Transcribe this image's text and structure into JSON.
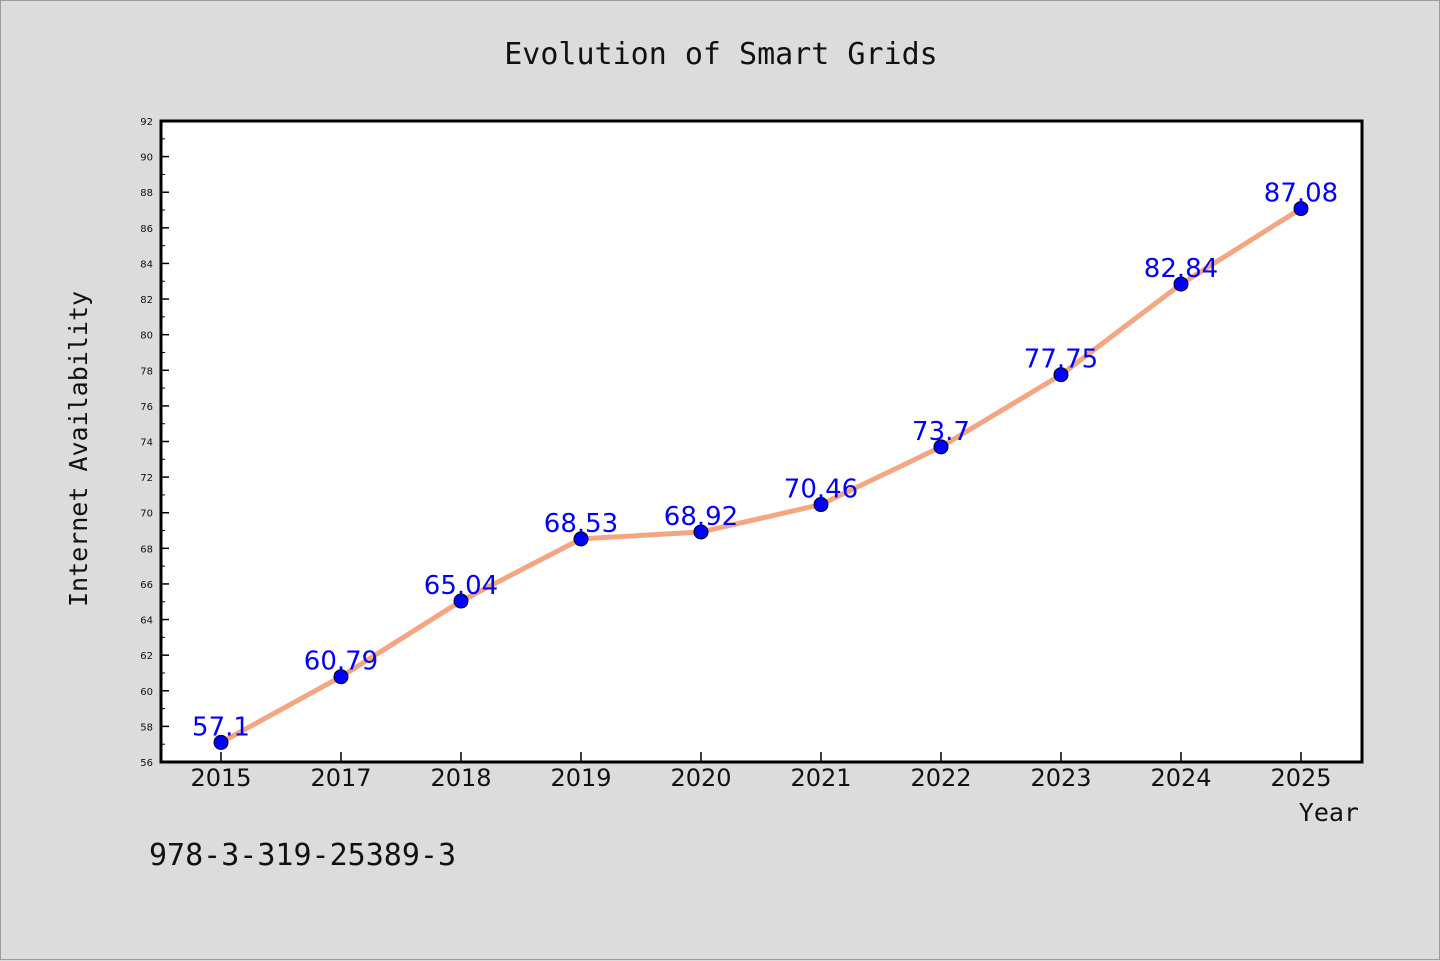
{
  "chart_data": {
    "type": "line",
    "title": "Evolution of Smart Grids",
    "xlabel": "Year",
    "ylabel": "Internet Availability",
    "categories": [
      "2015",
      "2017",
      "2018",
      "2019",
      "2020",
      "2021",
      "2022",
      "2023",
      "2024",
      "2025"
    ],
    "series": [
      {
        "values": [
          57.1,
          60.79,
          65.04,
          68.53,
          68.92,
          70.46,
          73.7,
          77.75,
          82.84,
          87.08
        ],
        "line_color": "#f4a582",
        "marker_color": "#0000ff"
      }
    ],
    "data_labels": [
      "57.1",
      "60.79",
      "65.04",
      "68.53",
      "68.92",
      "70.46",
      "73.7",
      "77.75",
      "82.84",
      "87.08"
    ],
    "ylim": [
      56,
      92
    ],
    "yticks": [
      56,
      58,
      60,
      62,
      64,
      66,
      68,
      70,
      72,
      74,
      76,
      78,
      80,
      82,
      84,
      86,
      88,
      90,
      92
    ],
    "grid": false,
    "label_color": "#0000ff"
  },
  "annotation": "978-3-319-25389-3"
}
